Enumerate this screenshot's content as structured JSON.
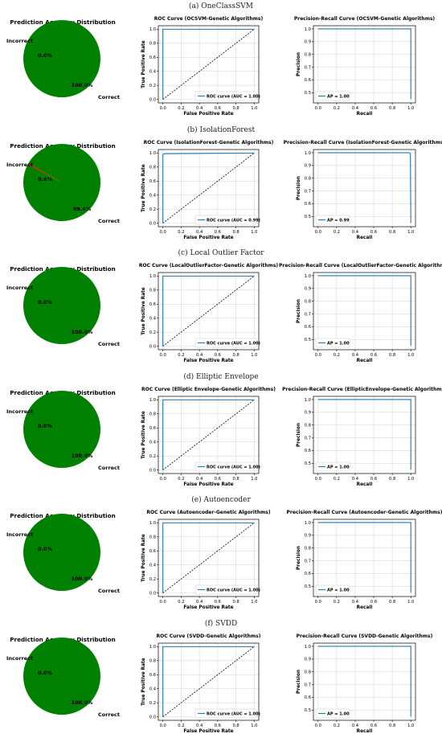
{
  "colors": {
    "correct": "#008000",
    "incorrect": "#ff0000",
    "curve": "#1f77b4",
    "diagonal": "#000000",
    "grid": "#d9d9d9"
  },
  "panels": [
    {
      "caption": "(a) OneClassSVM",
      "pie": {
        "title": "Prediction Accuracy Distribution",
        "labels": [
          "Incorrect",
          "Correct"
        ],
        "pct_labels": [
          "0.0%",
          "100.0%"
        ],
        "values": [
          0.0,
          100.0
        ]
      },
      "roc": {
        "title": "ROC Curve (OCSVM-Genetic Algorithms)",
        "xlabel": "False Positive Rate",
        "ylabel": "True Positive Rate",
        "legend": "ROC curve (AUC = 1.00)",
        "fpr": [
          0,
          0,
          1
        ],
        "tpr": [
          0,
          1,
          1
        ]
      },
      "pr": {
        "title": "Precision-Recall Curve (OCSVM-Genetic Algorithms)",
        "xlabel": "Recall",
        "ylabel": "Precision",
        "legend": "AP = 1.00",
        "recall": [
          0,
          1,
          1
        ],
        "precision": [
          1,
          1,
          0.45
        ]
      }
    },
    {
      "caption": "(b) IsolationForest",
      "pie": {
        "title": "Prediction Accuracy Distribution",
        "labels": [
          "Incorrect",
          "Correct"
        ],
        "pct_labels": [
          "0.6%",
          "99.4%"
        ],
        "values": [
          0.6,
          99.4
        ]
      },
      "roc": {
        "title": "ROC Curve (IsolationForest-Genetic Algorithms)",
        "xlabel": "False Positive Rate",
        "ylabel": "True Positive Rate",
        "legend": "ROC curve (AUC = 0.99)",
        "fpr": [
          0,
          0,
          0.02,
          1
        ],
        "tpr": [
          0,
          0.98,
          0.99,
          1
        ]
      },
      "pr": {
        "title": "Precision-Recall Curve (IsolationForest-Genetic Algorithms)",
        "xlabel": "Recall",
        "ylabel": "Precision",
        "legend": "AP = 0.99",
        "recall": [
          0,
          0.98,
          0.99,
          0.995,
          1
        ],
        "precision": [
          1,
          1,
          0.995,
          0.99,
          0.45
        ]
      }
    },
    {
      "caption": "(c) Local Outlier Factor",
      "pie": {
        "title": "Prediction Accuracy Distribution",
        "labels": [
          "Incorrect",
          "Correct"
        ],
        "pct_labels": [
          "0.0%",
          "100.0%"
        ],
        "values": [
          0.0,
          100.0
        ]
      },
      "roc": {
        "title": "ROC Curve (LocalOutlierFactor-Genetic Algorithms)",
        "xlabel": "False Positive Rate",
        "ylabel": "True Positive Rate",
        "legend": "ROC curve (AUC = 1.00)",
        "fpr": [
          0,
          0,
          1
        ],
        "tpr": [
          0,
          1,
          1
        ]
      },
      "pr": {
        "title": "Precision-Recall Curve (LocalOutlierFactor-Genetic Algorithms)",
        "xlabel": "Recall",
        "ylabel": "Precision",
        "legend": "AP = 1.00",
        "recall": [
          0,
          1,
          1
        ],
        "precision": [
          1,
          1,
          0.45
        ]
      }
    },
    {
      "caption": "(d) Elliptic Envelope",
      "pie": {
        "title": "Prediction Accuracy Distribution",
        "labels": [
          "Incorrect",
          "Correct"
        ],
        "pct_labels": [
          "0.0%",
          "100.0%"
        ],
        "values": [
          0.0,
          100.0
        ]
      },
      "roc": {
        "title": "ROC Curve (Elliptic Envelope-Genetic Algorithms)",
        "xlabel": "False Positive Rate",
        "ylabel": "True Positive Rate",
        "legend": "ROC curve (AUC = 1.00)",
        "fpr": [
          0,
          0,
          1
        ],
        "tpr": [
          0,
          1,
          1
        ]
      },
      "pr": {
        "title": "Precision-Recall Curve (EllipticEnvelope-Genetic Algorithms)",
        "xlabel": "Recall",
        "ylabel": "Precision",
        "legend": "AP = 1.00",
        "recall": [
          0,
          1,
          1
        ],
        "precision": [
          1,
          1,
          0.45
        ]
      }
    },
    {
      "caption": "(e) Autoencoder",
      "pie": {
        "title": "Prediction Accuracy Distribution",
        "labels": [
          "Incorrect",
          "Correct"
        ],
        "pct_labels": [
          "0.0%",
          "100.0%"
        ],
        "values": [
          0.0,
          100.0
        ]
      },
      "roc": {
        "title": "ROC Curve (Autoencoder-Genetic Algorithms)",
        "xlabel": "False Positive Rate",
        "ylabel": "True Positive Rate",
        "legend": "ROC curve (AUC = 1.00)",
        "fpr": [
          0,
          0,
          1
        ],
        "tpr": [
          0,
          1,
          1
        ]
      },
      "pr": {
        "title": "Precision-Recall Curve (Autoencoder-Genetic Algorithms)",
        "xlabel": "Recall",
        "ylabel": "Precision",
        "legend": "AP = 1.00",
        "recall": [
          0,
          1,
          1
        ],
        "precision": [
          1,
          1,
          0.45
        ]
      }
    },
    {
      "caption": "(f) SVDD",
      "pie": {
        "title": "Prediction Accuracy Distribution",
        "labels": [
          "Incorrect",
          "Correct"
        ],
        "pct_labels": [
          "0.0%",
          "100.0%"
        ],
        "values": [
          0.0,
          100.0
        ]
      },
      "roc": {
        "title": "ROC Curve (SVDD-Genetic Algorithms)",
        "xlabel": "False Positive Rate",
        "ylabel": "True Positive Rate",
        "legend": "ROC curve (AUC = 1.00)",
        "fpr": [
          0,
          0,
          1
        ],
        "tpr": [
          0,
          1,
          1
        ]
      },
      "pr": {
        "title": "Precision-Recall Curve (SVDD-Genetic Algorithms)",
        "xlabel": "Recall",
        "ylabel": "Precision",
        "legend": "AP = 1.00",
        "recall": [
          0,
          1,
          1
        ],
        "precision": [
          1,
          1,
          0.45
        ]
      }
    }
  ],
  "chart_data": [
    {
      "type": "pie",
      "panel": "(a) OneClassSVM",
      "title": "Prediction Accuracy Distribution",
      "labels": [
        "Incorrect",
        "Correct"
      ],
      "values": [
        0.0,
        100.0
      ]
    },
    {
      "type": "line",
      "panel": "(a) OneClassSVM",
      "title": "ROC Curve (OCSVM-Genetic Algorithms)",
      "xlabel": "False Positive Rate",
      "ylabel": "True Positive Rate",
      "xlim": [
        0,
        1
      ],
      "ylim": [
        0,
        1
      ],
      "ticks": [
        0.0,
        0.2,
        0.4,
        0.6,
        0.8,
        1.0
      ],
      "grid": true,
      "legend": "lower-right",
      "series": [
        {
          "name": "ROC curve (AUC = 1.00)",
          "x": [
            0,
            0,
            1
          ],
          "y": [
            0,
            1,
            1
          ]
        }
      ]
    },
    {
      "type": "line",
      "panel": "(a) OneClassSVM",
      "title": "Precision-Recall Curve (OCSVM-Genetic Algorithms)",
      "xlabel": "Recall",
      "ylabel": "Precision",
      "xlim": [
        0,
        1
      ],
      "ylim": [
        0.45,
        1.0
      ],
      "yticks": [
        0.5,
        0.6,
        0.7,
        0.8,
        0.9,
        1.0
      ],
      "grid": true,
      "legend": "lower-left",
      "series": [
        {
          "name": "AP = 1.00",
          "x": [
            0,
            1,
            1
          ],
          "y": [
            1,
            1,
            0.45
          ]
        }
      ]
    },
    {
      "type": "pie",
      "panel": "(b) IsolationForest",
      "title": "Prediction Accuracy Distribution",
      "labels": [
        "Incorrect",
        "Correct"
      ],
      "values": [
        0.6,
        99.4
      ]
    },
    {
      "type": "line",
      "panel": "(b) IsolationForest",
      "title": "ROC Curve (IsolationForest-Genetic Algorithms)",
      "xlabel": "False Positive Rate",
      "ylabel": "True Positive Rate",
      "xlim": [
        0,
        1
      ],
      "ylim": [
        0,
        1
      ],
      "grid": true,
      "legend": "lower-right",
      "series": [
        {
          "name": "ROC curve (AUC = 0.99)",
          "x": [
            0,
            0,
            0.02,
            1
          ],
          "y": [
            0,
            0.98,
            0.99,
            1
          ]
        }
      ]
    },
    {
      "type": "line",
      "panel": "(b) IsolationForest",
      "title": "Precision-Recall Curve (IsolationForest-Genetic Algorithms)",
      "xlabel": "Recall",
      "ylabel": "Precision",
      "xlim": [
        0,
        1
      ],
      "ylim": [
        0.45,
        1.0
      ],
      "grid": true,
      "legend": "lower-left",
      "series": [
        {
          "name": "AP = 0.99",
          "x": [
            0,
            0.98,
            0.99,
            0.995,
            1
          ],
          "y": [
            1,
            1,
            0.995,
            0.99,
            0.45
          ]
        }
      ]
    },
    {
      "type": "pie",
      "panel": "(c) Local Outlier Factor",
      "title": "Prediction Accuracy Distribution",
      "labels": [
        "Incorrect",
        "Correct"
      ],
      "values": [
        0.0,
        100.0
      ]
    },
    {
      "type": "line",
      "panel": "(c) Local Outlier Factor",
      "title": "ROC Curve (LocalOutlierFactor-Genetic Algorithms)",
      "xlabel": "False Positive Rate",
      "ylabel": "True Positive Rate",
      "xlim": [
        0,
        1
      ],
      "ylim": [
        0,
        1
      ],
      "grid": true,
      "legend": "lower-right",
      "series": [
        {
          "name": "ROC curve (AUC = 1.00)",
          "x": [
            0,
            0,
            1
          ],
          "y": [
            0,
            1,
            1
          ]
        }
      ]
    },
    {
      "type": "line",
      "panel": "(c) Local Outlier Factor",
      "title": "Precision-Recall Curve (LocalOutlierFactor-Genetic Algorithms)",
      "xlabel": "Recall",
      "ylabel": "Precision",
      "xlim": [
        0,
        1
      ],
      "ylim": [
        0.45,
        1.0
      ],
      "grid": true,
      "legend": "lower-left",
      "series": [
        {
          "name": "AP = 1.00",
          "x": [
            0,
            1,
            1
          ],
          "y": [
            1,
            1,
            0.45
          ]
        }
      ]
    },
    {
      "type": "pie",
      "panel": "(d) Elliptic Envelope",
      "title": "Prediction Accuracy Distribution",
      "labels": [
        "Incorrect",
        "Correct"
      ],
      "values": [
        0.0,
        100.0
      ]
    },
    {
      "type": "line",
      "panel": "(d) Elliptic Envelope",
      "title": "ROC Curve (Elliptic Envelope-Genetic Algorithms)",
      "xlabel": "False Positive Rate",
      "ylabel": "True Positive Rate",
      "xlim": [
        0,
        1
      ],
      "ylim": [
        0,
        1
      ],
      "grid": true,
      "legend": "lower-right",
      "series": [
        {
          "name": "ROC curve (AUC = 1.00)",
          "x": [
            0,
            0,
            1
          ],
          "y": [
            0,
            1,
            1
          ]
        }
      ]
    },
    {
      "type": "line",
      "panel": "(d) Elliptic Envelope",
      "title": "Precision-Recall Curve (EllipticEnvelope-Genetic Algorithms)",
      "xlabel": "Recall",
      "ylabel": "Precision",
      "xlim": [
        0,
        1
      ],
      "ylim": [
        0.45,
        1.0
      ],
      "grid": true,
      "legend": "lower-left",
      "series": [
        {
          "name": "AP = 1.00",
          "x": [
            0,
            1,
            1
          ],
          "y": [
            1,
            1,
            0.45
          ]
        }
      ]
    },
    {
      "type": "pie",
      "panel": "(e) Autoencoder",
      "title": "Prediction Accuracy Distribution",
      "labels": [
        "Incorrect",
        "Correct"
      ],
      "values": [
        0.0,
        100.0
      ]
    },
    {
      "type": "line",
      "panel": "(e) Autoencoder",
      "title": "ROC Curve (Autoencoder-Genetic Algorithms)",
      "xlabel": "False Positive Rate",
      "ylabel": "True Positive Rate",
      "xlim": [
        0,
        1
      ],
      "ylim": [
        0,
        1
      ],
      "grid": true,
      "legend": "lower-right",
      "series": [
        {
          "name": "ROC curve (AUC = 1.00)",
          "x": [
            0,
            0,
            1
          ],
          "y": [
            0,
            1,
            1
          ]
        }
      ]
    },
    {
      "type": "line",
      "panel": "(e) Autoencoder",
      "title": "Precision-Recall Curve (Autoencoder-Genetic Algorithms)",
      "xlabel": "Recall",
      "ylabel": "Precision",
      "xlim": [
        0,
        1
      ],
      "ylim": [
        0.45,
        1.0
      ],
      "grid": true,
      "legend": "lower-left",
      "series": [
        {
          "name": "AP = 1.00",
          "x": [
            0,
            1,
            1
          ],
          "y": [
            1,
            1,
            0.45
          ]
        }
      ]
    },
    {
      "type": "pie",
      "panel": "(f) SVDD",
      "title": "Prediction Accuracy Distribution",
      "labels": [
        "Incorrect",
        "Correct"
      ],
      "values": [
        0.0,
        100.0
      ]
    },
    {
      "type": "line",
      "panel": "(f) SVDD",
      "title": "ROC Curve (SVDD-Genetic Algorithms)",
      "xlabel": "False Positive Rate",
      "ylabel": "True Positive Rate",
      "xlim": [
        0,
        1
      ],
      "ylim": [
        0,
        1
      ],
      "grid": true,
      "legend": "lower-right",
      "series": [
        {
          "name": "ROC curve (AUC = 1.00)",
          "x": [
            0,
            0,
            1
          ],
          "y": [
            0,
            1,
            1
          ]
        }
      ]
    },
    {
      "type": "line",
      "panel": "(f) SVDD",
      "title": "Precision-Recall Curve (SVDD-Genetic Algorithms)",
      "xlabel": "Recall",
      "ylabel": "Precision",
      "xlim": [
        0,
        1
      ],
      "ylim": [
        0.45,
        1.0
      ],
      "grid": true,
      "legend": "lower-left",
      "series": [
        {
          "name": "AP = 1.00",
          "x": [
            0,
            1,
            1
          ],
          "y": [
            1,
            1,
            0.45
          ]
        }
      ]
    }
  ]
}
